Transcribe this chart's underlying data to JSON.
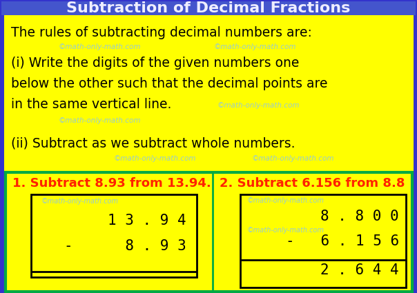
{
  "bg_color": "#FFFF00",
  "border_color_outer": "#3333CC",
  "border_color_inner": "#00AA44",
  "title_text": "Subtraction of Decimal Fractions",
  "title_bg": "#4455CC",
  "rule_intro": "The rules of subtracting decimal numbers are:",
  "rule1_line1": "(i) Write the digits of the given numbers one",
  "rule1_line2": "below the other such that the decimal points are",
  "rule1_line3": "in the same vertical line.",
  "rule2": "(ii) Subtract as we subtract whole numbers.",
  "watermark": "©math-only-math.com",
  "watermark_color": "#99CCCC",
  "ex1_label": "1. Subtract 8.93 from 13.94.",
  "ex2_label": "2. Subtract 6.156 from 8.8",
  "ex1_line1": "1 3 . 9 4",
  "ex1_line2": "-      8 . 9 3",
  "ex2_line1": "8 . 8 0 0",
  "ex2_line2": "-   6 . 1 5 6",
  "ex2_line3": "2 . 6 4 4",
  "example_label_color": "#FF2200",
  "example_text_color": "#000000",
  "main_text_color": "#000000",
  "title_color": "#EEEEFF"
}
